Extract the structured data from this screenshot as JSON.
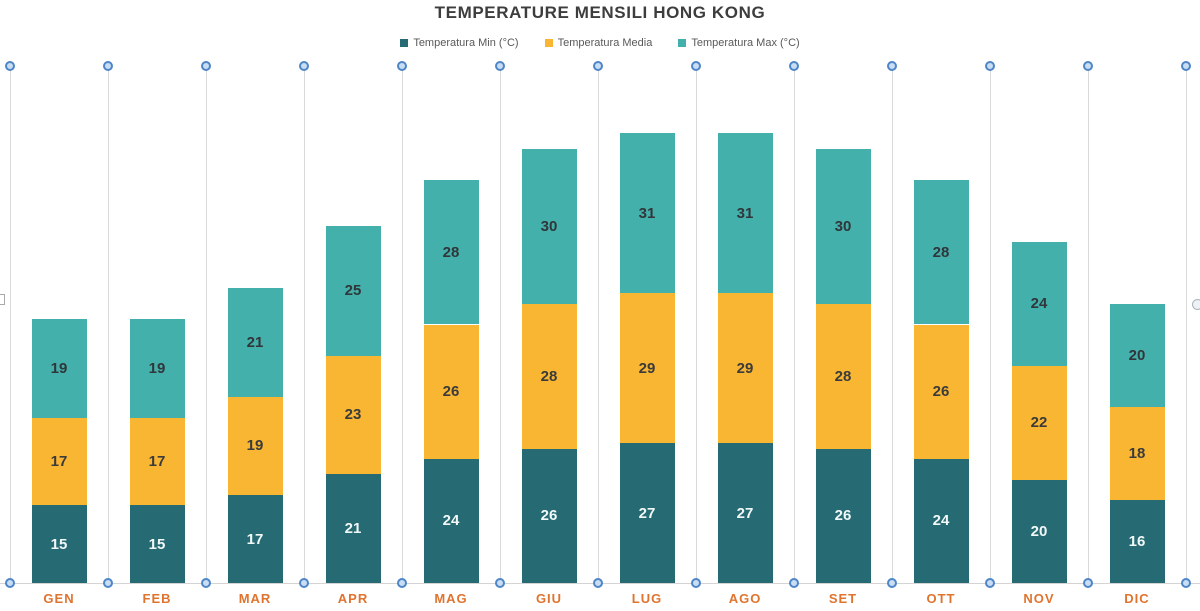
{
  "title": "TEMPERATURE MENSILI HONG KONG",
  "legend": [
    {
      "label": "Temperatura Min (°C)",
      "color": "#266b74"
    },
    {
      "label": "Temperatura Media",
      "color": "#f8b633"
    },
    {
      "label": "Temperatura Max (°C)",
      "color": "#44b0ab"
    }
  ],
  "chart_data": {
    "type": "bar",
    "stacked": true,
    "title": "TEMPERATURE MENSILI HONG KONG",
    "categories": [
      "GEN",
      "FEB",
      "MAR",
      "APR",
      "MAG",
      "GIU",
      "LUG",
      "AGO",
      "SET",
      "OTT",
      "NOV",
      "DIC"
    ],
    "series": [
      {
        "name": "Temperatura Min (°C)",
        "color": "#266b74",
        "label_color": "#f2f8f8",
        "values": [
          15,
          15,
          17,
          21,
          24,
          26,
          27,
          27,
          26,
          24,
          20,
          16
        ]
      },
      {
        "name": "Temperatura Media",
        "color": "#f8b633",
        "label_color": "#3b3b3b",
        "values": [
          17,
          17,
          19,
          23,
          26,
          28,
          29,
          29,
          28,
          26,
          22,
          18
        ]
      },
      {
        "name": "Temperatura Max (°C)",
        "color": "#44b0ab",
        "label_color": "#30363a",
        "values": [
          19,
          19,
          21,
          25,
          28,
          30,
          31,
          31,
          30,
          28,
          24,
          20
        ]
      }
    ],
    "ylim": [
      0,
      100
    ],
    "xlabel": "",
    "ylabel": "",
    "grid": "vertical category-boundary gridlines with selection handles",
    "legend_position": "top",
    "data_labels": "inside each stacked segment",
    "category_label_color": "#e0742f"
  },
  "colors": {
    "gridline": "#d9d9d9",
    "axis_line": "#d4d4d4",
    "grid_handle_border": "#4e86c8",
    "grid_handle_fill": "#c9ddf4",
    "month_label": "#e0742f",
    "title_text": "#3d3d3d",
    "legend_text": "#595959"
  }
}
